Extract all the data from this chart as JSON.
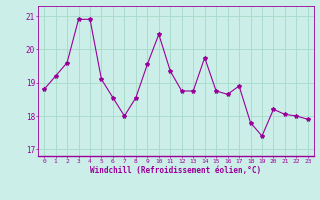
{
  "x": [
    0,
    1,
    2,
    3,
    4,
    5,
    6,
    7,
    8,
    9,
    10,
    11,
    12,
    13,
    14,
    15,
    16,
    17,
    18,
    19,
    20,
    21,
    22,
    23
  ],
  "y": [
    18.8,
    19.2,
    19.6,
    20.9,
    20.9,
    19.1,
    18.55,
    18.0,
    18.55,
    19.55,
    20.45,
    19.35,
    18.75,
    18.75,
    19.75,
    18.75,
    18.65,
    18.9,
    17.8,
    17.4,
    18.2,
    18.05,
    18.0,
    17.9
  ],
  "line_color": "#990099",
  "marker": "*",
  "marker_size": 3,
  "bg_color": "#cceee8",
  "grid_color": "#aaddcc",
  "xlabel": "Windchill (Refroidissement éolien,°C)",
  "xlabel_color": "#990099",
  "tick_color": "#990099",
  "ylim": [
    16.8,
    21.3
  ],
  "yticks": [
    17,
    18,
    19,
    20,
    21
  ],
  "xlim": [
    -0.5,
    23.5
  ],
  "spine_color": "#990099"
}
